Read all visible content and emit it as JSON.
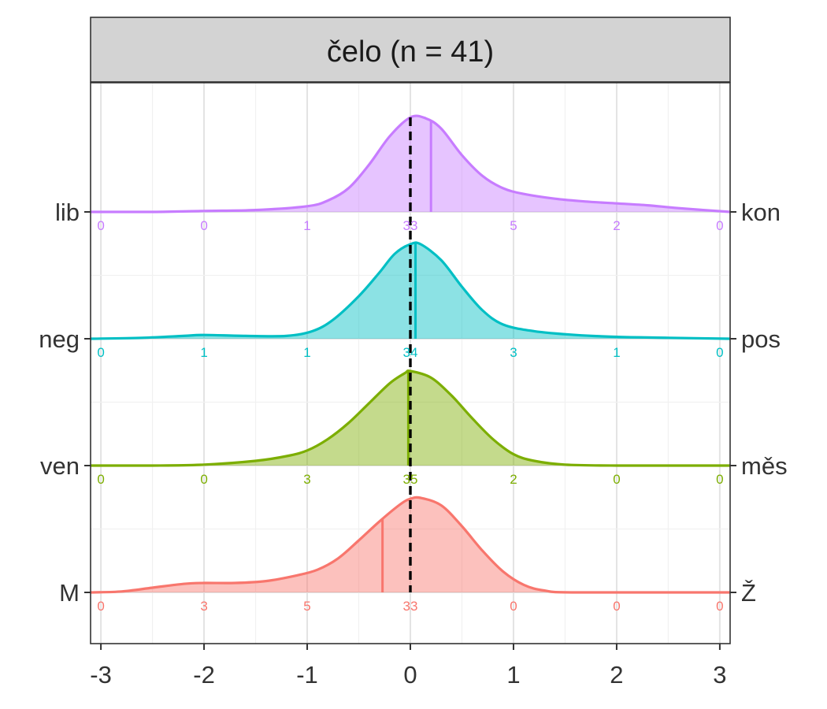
{
  "chart_data": {
    "type": "area",
    "title": "čelo (n = 41)",
    "xlim": [
      -3.1,
      3.1
    ],
    "x_ticks": [
      -3,
      -2,
      -1,
      0,
      1,
      2,
      3
    ],
    "x_tick_labels": [
      "-3",
      "-2",
      "-1",
      "0",
      "1",
      "2",
      "3"
    ],
    "reference_line": {
      "x": 0,
      "style": "dashed",
      "color": "#000000"
    },
    "grid": true,
    "count_positions": [
      -3,
      -2,
      -1,
      0,
      1,
      2,
      3
    ],
    "rows": [
      {
        "left_label": "lib",
        "right_label": "kon",
        "color": "#C77CFF",
        "mean": 0.2,
        "counts": [
          "0",
          "0",
          "1",
          "33",
          "5",
          "2",
          "0"
        ],
        "density": [
          [
            -3.1,
            0
          ],
          [
            -2.5,
            0
          ],
          [
            -2,
            0.01
          ],
          [
            -1.5,
            0.02
          ],
          [
            -1,
            0.06
          ],
          [
            -0.8,
            0.12
          ],
          [
            -0.6,
            0.25
          ],
          [
            -0.4,
            0.5
          ],
          [
            -0.2,
            0.8
          ],
          [
            0,
            1
          ],
          [
            0.15,
            0.99
          ],
          [
            0.3,
            0.88
          ],
          [
            0.5,
            0.6
          ],
          [
            0.7,
            0.38
          ],
          [
            0.9,
            0.25
          ],
          [
            1.1,
            0.19
          ],
          [
            1.4,
            0.14
          ],
          [
            1.7,
            0.11
          ],
          [
            2,
            0.09
          ],
          [
            2.3,
            0.07
          ],
          [
            2.6,
            0.04
          ],
          [
            3.1,
            0
          ]
        ]
      },
      {
        "left_label": "neg",
        "right_label": "pos",
        "color": "#00BFC4",
        "mean": 0.05,
        "counts": [
          "0",
          "1",
          "1",
          "34",
          "3",
          "1",
          "0"
        ],
        "density": [
          [
            -3.1,
            0
          ],
          [
            -2.6,
            0.01
          ],
          [
            -2.2,
            0.03
          ],
          [
            -2,
            0.04
          ],
          [
            -1.6,
            0.03
          ],
          [
            -1.2,
            0.03
          ],
          [
            -0.95,
            0.08
          ],
          [
            -0.75,
            0.2
          ],
          [
            -0.5,
            0.45
          ],
          [
            -0.3,
            0.7
          ],
          [
            -0.15,
            0.9
          ],
          [
            0,
            1
          ],
          [
            0.1,
            1
          ],
          [
            0.3,
            0.83
          ],
          [
            0.5,
            0.55
          ],
          [
            0.7,
            0.3
          ],
          [
            0.9,
            0.15
          ],
          [
            1.2,
            0.08
          ],
          [
            1.6,
            0.04
          ],
          [
            2,
            0.02
          ],
          [
            2.5,
            0.01
          ],
          [
            3.1,
            0
          ]
        ]
      },
      {
        "left_label": "ven",
        "right_label": "měs",
        "color": "#7CAE00",
        "mean": -0.02,
        "counts": [
          "0",
          "0",
          "3",
          "35",
          "2",
          "0",
          "0"
        ],
        "density": [
          [
            -3.1,
            0
          ],
          [
            -2.5,
            0
          ],
          [
            -2,
            0.01
          ],
          [
            -1.5,
            0.05
          ],
          [
            -1.2,
            0.1
          ],
          [
            -1,
            0.16
          ],
          [
            -0.8,
            0.28
          ],
          [
            -0.6,
            0.45
          ],
          [
            -0.4,
            0.66
          ],
          [
            -0.2,
            0.87
          ],
          [
            -0.05,
            0.98
          ],
          [
            0,
            1
          ],
          [
            0.2,
            0.93
          ],
          [
            0.4,
            0.74
          ],
          [
            0.6,
            0.5
          ],
          [
            0.8,
            0.28
          ],
          [
            1,
            0.12
          ],
          [
            1.2,
            0.05
          ],
          [
            1.5,
            0.01
          ],
          [
            2,
            0
          ],
          [
            3.1,
            0
          ]
        ]
      },
      {
        "left_label": "M",
        "right_label": "Ž",
        "color": "#F8766D",
        "mean": -0.27,
        "counts": [
          "0",
          "3",
          "5",
          "33",
          "0",
          "0",
          "0"
        ],
        "density": [
          [
            -3.1,
            0
          ],
          [
            -2.8,
            0.01
          ],
          [
            -2.5,
            0.05
          ],
          [
            -2.2,
            0.09
          ],
          [
            -2,
            0.1
          ],
          [
            -1.7,
            0.1
          ],
          [
            -1.4,
            0.12
          ],
          [
            -1.1,
            0.18
          ],
          [
            -0.9,
            0.24
          ],
          [
            -0.7,
            0.36
          ],
          [
            -0.5,
            0.55
          ],
          [
            -0.3,
            0.75
          ],
          [
            -0.1,
            0.93
          ],
          [
            0,
            0.99
          ],
          [
            0.1,
            1
          ],
          [
            0.3,
            0.92
          ],
          [
            0.5,
            0.7
          ],
          [
            0.7,
            0.44
          ],
          [
            0.9,
            0.22
          ],
          [
            1.1,
            0.08
          ],
          [
            1.3,
            0.02
          ],
          [
            1.6,
            0
          ],
          [
            3.1,
            0
          ]
        ]
      }
    ]
  }
}
